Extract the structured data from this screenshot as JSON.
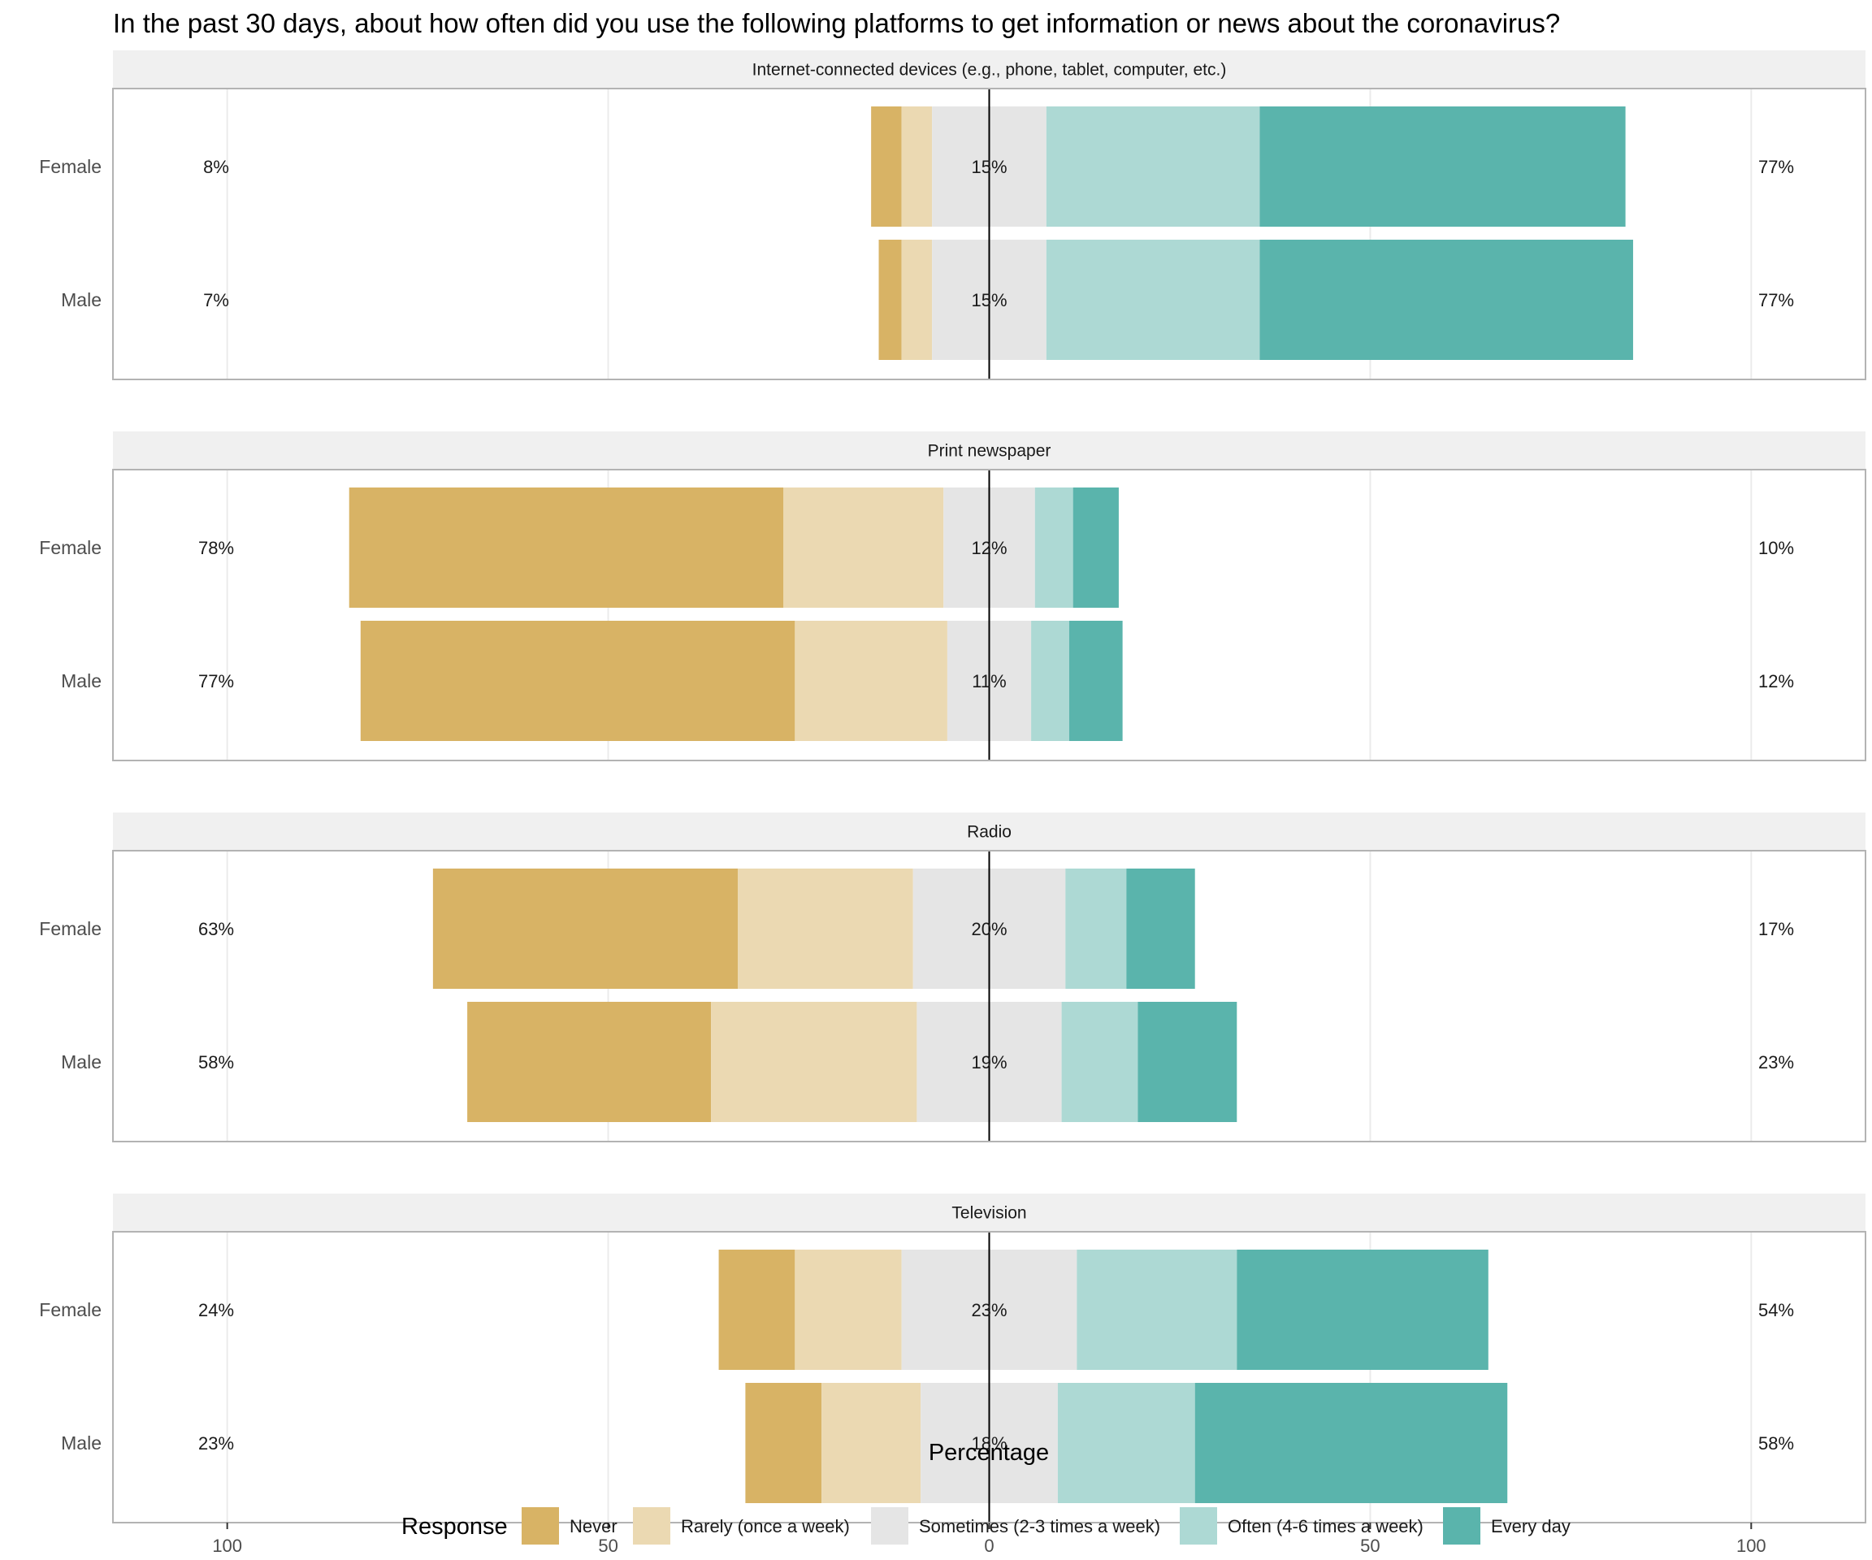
{
  "chart_data": {
    "type": "bar",
    "subtype": "diverging-stacked-horizontal",
    "title": "In the past 30 days, about how often did you use the following platforms to get information or news about the coronavirus?",
    "xlabel": "Percentage",
    "ylabel": "",
    "xlim": [
      -115,
      115
    ],
    "x_ticks": [
      -100,
      -50,
      0,
      50,
      100
    ],
    "x_tick_labels": [
      "100",
      "50",
      "0",
      "50",
      "100"
    ],
    "grid": true,
    "legend_title": "Response",
    "legend_position": "bottom",
    "responses": [
      "Never",
      "Rarely (once a week)",
      "Sometimes (2-3 times a week)",
      "Often (4-6 times a week)",
      "Every day"
    ],
    "colors": [
      "#D8B365",
      "#EBD9B2",
      "#E5E5E5",
      "#ADD9D4",
      "#5AB4AC"
    ],
    "panels": [
      {
        "name": "Internet-connected devices (e.g., phone, tablet, computer, etc.)",
        "groups": [
          {
            "label": "Female",
            "values": [
              4,
              4,
              15,
              28,
              48
            ],
            "low_pct": "8%",
            "mid_pct": "15%",
            "high_pct": "77%"
          },
          {
            "label": "Male",
            "values": [
              3,
              4,
              15,
              28,
              49
            ],
            "low_pct": "7%",
            "mid_pct": "15%",
            "high_pct": "77%"
          }
        ]
      },
      {
        "name": "Print newspaper",
        "groups": [
          {
            "label": "Female",
            "values": [
              57,
              21,
              12,
              5,
              6
            ],
            "low_pct": "78%",
            "mid_pct": "12%",
            "high_pct": "10%"
          },
          {
            "label": "Male",
            "values": [
              57,
              20,
              11,
              5,
              7
            ],
            "low_pct": "77%",
            "mid_pct": "11%",
            "high_pct": "12%"
          }
        ]
      },
      {
        "name": "Radio",
        "groups": [
          {
            "label": "Female",
            "values": [
              40,
              23,
              20,
              8,
              9
            ],
            "low_pct": "63%",
            "mid_pct": "20%",
            "high_pct": "17%"
          },
          {
            "label": "Male",
            "values": [
              32,
              27,
              19,
              10,
              13
            ],
            "low_pct": "58%",
            "mid_pct": "19%",
            "high_pct": "23%"
          }
        ]
      },
      {
        "name": "Television",
        "groups": [
          {
            "label": "Female",
            "values": [
              10,
              14,
              23,
              21,
              33
            ],
            "low_pct": "24%",
            "mid_pct": "23%",
            "high_pct": "54%"
          },
          {
            "label": "Male",
            "values": [
              10,
              13,
              18,
              18,
              41
            ],
            "low_pct": "23%",
            "mid_pct": "18%",
            "high_pct": "58%"
          }
        ]
      }
    ]
  }
}
